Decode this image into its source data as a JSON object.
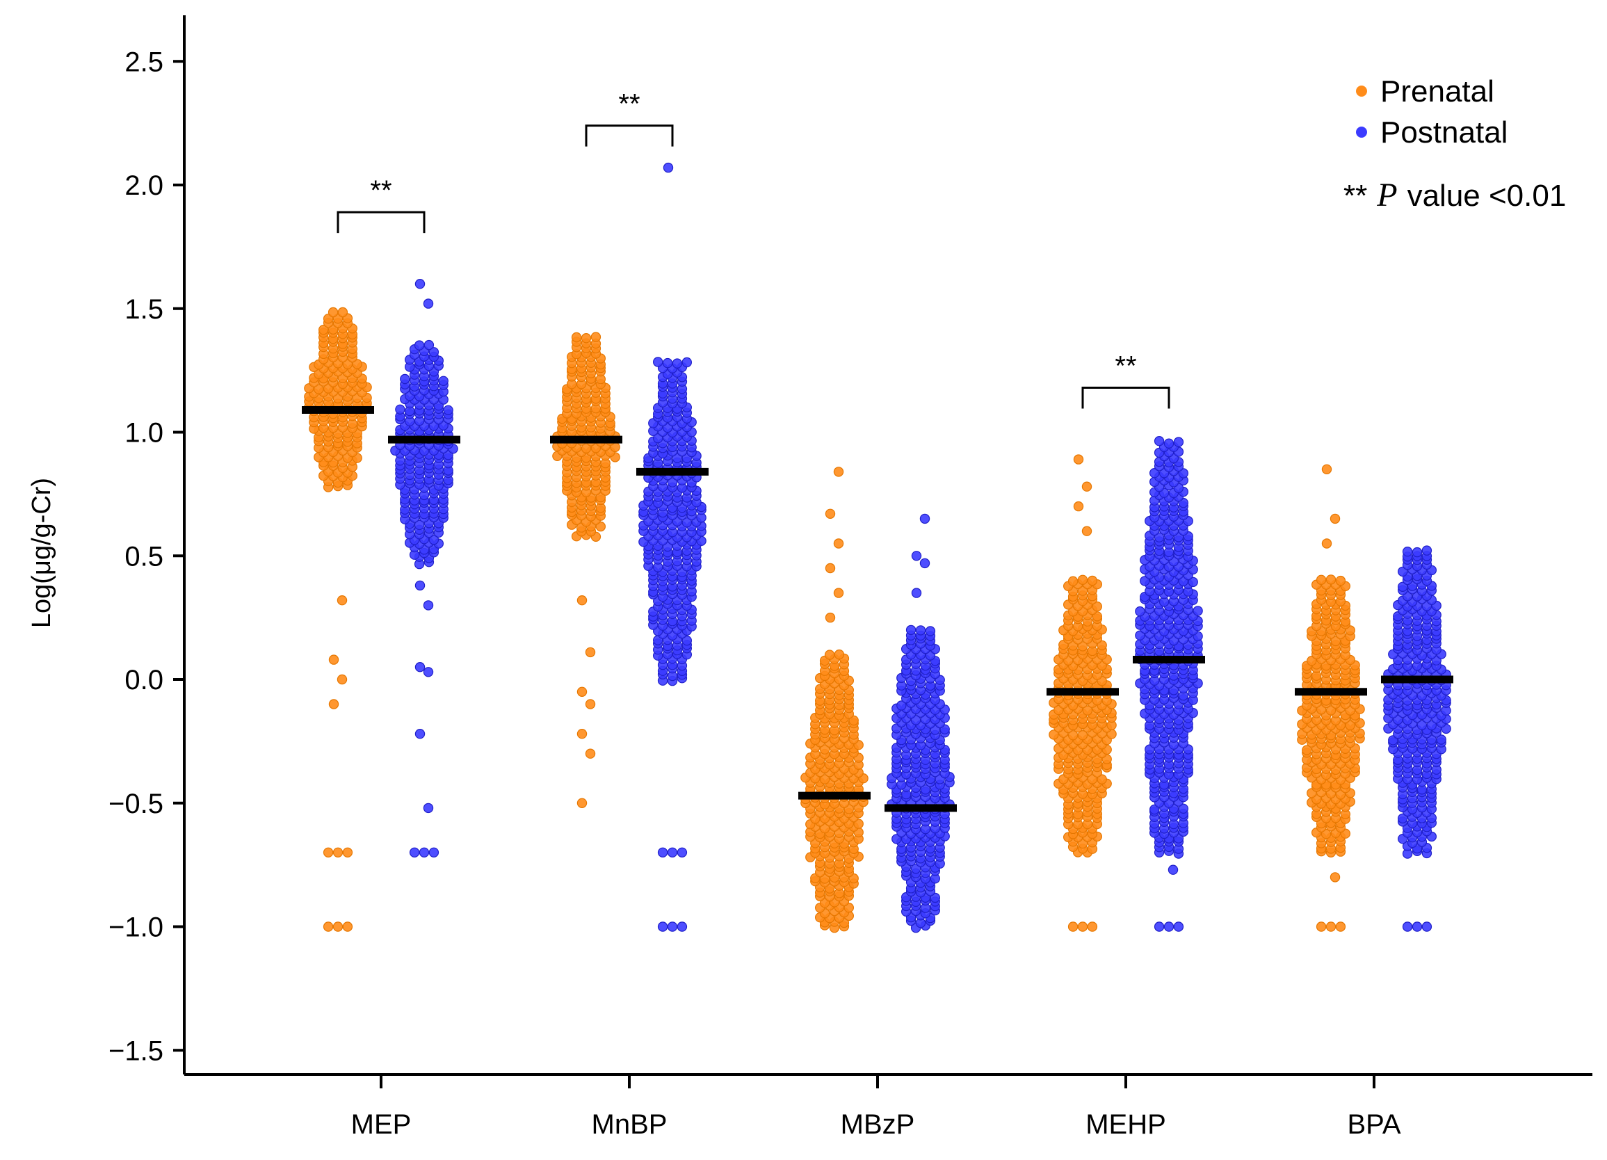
{
  "chart_data": {
    "type": "scatter",
    "subtype": "dot-strip-plot",
    "title": "",
    "xlabel": "",
    "ylabel": "Log(μg/g-Cr)",
    "ylim": [
      -1.65,
      2.65
    ],
    "yticks": [
      -1.5,
      -1.0,
      -0.5,
      0.0,
      0.5,
      1.0,
      1.5,
      2.0,
      2.5
    ],
    "ytick_labels": [
      "−1.5",
      "−1.0",
      "−0.5",
      "0.0",
      "0.5",
      "1.0",
      "1.5",
      "2.0",
      "2.5"
    ],
    "categories": [
      "MEP",
      "MnBP",
      "MBzP",
      "MEHP",
      "BPA"
    ],
    "series": [
      {
        "name": "Prenatal",
        "color": "#FF8C1A",
        "medians": [
          1.09,
          0.97,
          -0.47,
          -0.05,
          -0.05
        ],
        "distributions": [
          {
            "min": -1.0,
            "max": 1.68,
            "core_low": 0.78,
            "core_high": 1.48,
            "outliers": [
              -1.0,
              -0.7,
              -0.1,
              0.0,
              0.08,
              0.32
            ]
          },
          {
            "min": -0.5,
            "max": 1.53,
            "core_low": 0.58,
            "core_high": 1.38,
            "outliers": [
              -0.5,
              -0.3,
              -0.22,
              -0.1,
              -0.05,
              0.11,
              0.32
            ]
          },
          {
            "min": -1.08,
            "max": 0.84,
            "core_low": -1.0,
            "core_high": 0.1,
            "outliers": [
              0.25,
              0.35,
              0.45,
              0.55,
              0.67,
              0.84
            ]
          },
          {
            "min": -1.0,
            "max": 0.89,
            "core_low": -0.7,
            "core_high": 0.4,
            "outliers": [
              -1.0,
              0.6,
              0.7,
              0.78,
              0.89
            ]
          },
          {
            "min": -1.0,
            "max": 0.85,
            "core_low": -0.7,
            "core_high": 0.4,
            "outliers": [
              -1.0,
              -0.8,
              0.55,
              0.65,
              0.85
            ]
          }
        ]
      },
      {
        "name": "Postnatal",
        "color": "#3B3BFF",
        "medians": [
          0.97,
          0.84,
          -0.52,
          0.08,
          0.0
        ],
        "distributions": [
          {
            "min": -0.7,
            "max": 1.6,
            "core_low": 0.47,
            "core_high": 1.35,
            "outliers": [
              -0.7,
              -0.52,
              -0.22,
              0.03,
              0.05,
              0.3,
              0.38,
              1.52,
              1.6
            ]
          },
          {
            "min": -1.0,
            "max": 2.07,
            "core_low": 0.0,
            "core_high": 1.29,
            "outliers": [
              -1.0,
              -0.7,
              2.07
            ]
          },
          {
            "min": -1.0,
            "max": 0.66,
            "core_low": -1.0,
            "core_high": 0.2,
            "outliers": [
              0.35,
              0.47,
              0.5,
              0.65
            ]
          },
          {
            "min": -1.0,
            "max": 0.96,
            "core_low": -0.7,
            "core_high": 0.96,
            "outliers": [
              -1.0,
              -0.77
            ]
          },
          {
            "min": -1.0,
            "max": 0.6,
            "core_low": -0.7,
            "core_high": 0.52,
            "outliers": [
              -1.0
            ]
          }
        ]
      }
    ],
    "significance": [
      {
        "category": "MEP",
        "label": "**"
      },
      {
        "category": "MnBP",
        "label": "**"
      },
      {
        "category": "MEHP",
        "label": "**"
      }
    ],
    "legend": {
      "placement": "top-right",
      "entries": [
        "Prenatal",
        "Postnatal"
      ],
      "note_prefix": "**",
      "note_p": "P",
      "note_suffix": "value <0.01"
    }
  }
}
